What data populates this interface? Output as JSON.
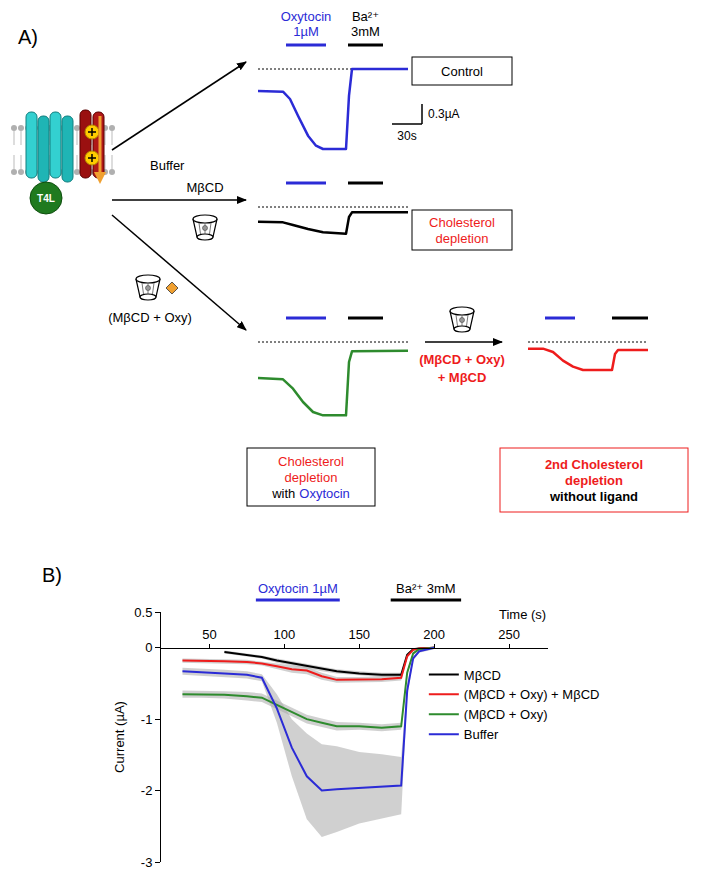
{
  "panel_a": {
    "label": "A)",
    "baseline": 0,
    "receptor_label": "T4L",
    "treatments": [
      "Buffer",
      "MβCD",
      "(MβCD + Oxy)"
    ],
    "stimuli": [
      {
        "lines": [
          "Oxytocin",
          "1µM"
        ],
        "color": "#2b2bd6"
      },
      {
        "lines": [
          "Ba²⁺",
          "3mM"
        ],
        "color": "#000000"
      }
    ],
    "scale_bar": {
      "current": 0.3,
      "current_label": "0.3µA",
      "time": 30,
      "time_label": "30s"
    },
    "second_treatment": {
      "lines": [
        "(MβCD + Oxy)",
        "+ MβCD"
      ],
      "color": "#ee1c1c"
    },
    "traces": [
      {
        "color": "#2b2bd6",
        "t": [
          0,
          25,
          32,
          40,
          50,
          58,
          65,
          88,
          91,
          94,
          150
        ],
        "current": [
          -0.33,
          -0.34,
          -0.45,
          -0.7,
          -1.0,
          -1.15,
          -1.2,
          -1.2,
          -0.4,
          0,
          0
        ],
        "stimulus_times": [
          [
            28,
            68
          ],
          [
            90,
            125
          ]
        ],
        "box": {
          "color": "#000000",
          "lines": [
            [
              {
                "text": "Control",
                "color": "#000000"
              }
            ]
          ]
        }
      },
      {
        "color": "#000000",
        "t": [
          0,
          25,
          35,
          50,
          65,
          88,
          91,
          94,
          150
        ],
        "current": [
          -0.22,
          -0.23,
          -0.27,
          -0.33,
          -0.38,
          -0.4,
          -0.15,
          -0.08,
          -0.08
        ],
        "stimulus_times": [
          [
            28,
            68
          ],
          [
            90,
            125
          ]
        ],
        "box": {
          "color": "#000000",
          "lines": [
            [
              {
                "text": "Cholesterol",
                "color": "#ee1c1c"
              }
            ],
            [
              {
                "text": "depletion",
                "color": "#ee1c1c"
              }
            ]
          ]
        }
      },
      {
        "color": "#2e8b2e",
        "t": [
          0,
          25,
          35,
          45,
          55,
          65,
          88,
          91,
          94,
          150
        ],
        "current": [
          -0.54,
          -0.56,
          -0.7,
          -0.9,
          -1.05,
          -1.1,
          -1.1,
          -0.3,
          -0.14,
          -0.13
        ],
        "stimulus_times": [
          [
            28,
            68
          ],
          [
            90,
            125
          ]
        ],
        "box": {
          "color": "#000000",
          "lines": [
            [
              {
                "text": "Cholesterol",
                "color": "#ee1c1c"
              }
            ],
            [
              {
                "text": "depletion",
                "color": "#ee1c1c"
              }
            ],
            [
              {
                "text": "with",
                "color": "#000000"
              },
              {
                "text": "Oxytocin",
                "color": "#2b2bd6"
              }
            ]
          ]
        }
      },
      {
        "color": "#ee1c1c",
        "t": [
          0,
          15,
          25,
          35,
          45,
          55,
          84,
          87,
          90,
          120
        ],
        "current": [
          -0.1,
          -0.1,
          -0.15,
          -0.28,
          -0.37,
          -0.42,
          -0.42,
          -0.18,
          -0.12,
          -0.12
        ],
        "stimulus_times": [
          [
            17,
            47
          ],
          [
            84,
            120
          ]
        ],
        "box": {
          "color": "#ee1c1c",
          "lines": [
            [
              {
                "text": "2nd Cholesterol",
                "color": "#ee1c1c"
              }
            ],
            [
              {
                "text": "depletion",
                "color": "#ee1c1c"
              }
            ],
            [
              {
                "text": "without ligand",
                "color": "#000000"
              }
            ]
          ]
        }
      }
    ]
  },
  "chart_data": {
    "type": "line",
    "annotations": [
      {
        "text": "B)"
      },
      {
        "text": "Oxytocin 1µM",
        "x": [
          81,
          137
        ],
        "color": "#2b2bd6"
      },
      {
        "text": "Ba²⁺ 3mM",
        "x": [
          171,
          218
        ],
        "color": "#000000"
      }
    ],
    "xlabel": "Time (s)",
    "ylabel": "Current (µA)",
    "xlim": [
      17,
      276
    ],
    "xticks": [
      50,
      100,
      150,
      200,
      250
    ],
    "ylim": [
      -3,
      0.5
    ],
    "yticks": [
      -3,
      -2,
      -1,
      0,
      0.5
    ],
    "grid": false,
    "legend": "right",
    "x": [
      32,
      45,
      60,
      75,
      85,
      95,
      105,
      115,
      125,
      135,
      150,
      165,
      178,
      182,
      186,
      190,
      200
    ],
    "series": [
      {
        "name": "MβCD",
        "color": "#000000",
        "values": [
          null,
          null,
          -0.06,
          -0.1,
          -0.13,
          -0.18,
          -0.22,
          -0.26,
          -0.3,
          -0.33,
          -0.36,
          -0.38,
          -0.38,
          -0.1,
          -0.02,
          -0.01,
          0
        ],
        "error": [
          null,
          null,
          0.02,
          0.02,
          0.02,
          0.03,
          0.03,
          0.03,
          0.03,
          0.03,
          0.03,
          0.03,
          0.03,
          0.02,
          0.01,
          0.01,
          0.01
        ]
      },
      {
        "name": "(MβCD + Oxy) + MβCD",
        "color": "#ee1c1c",
        "values": [
          -0.18,
          -0.18,
          -0.19,
          -0.2,
          -0.22,
          -0.26,
          -0.3,
          -0.32,
          -0.4,
          -0.45,
          -0.45,
          -0.44,
          -0.42,
          -0.12,
          -0.03,
          -0.01,
          0
        ],
        "error": [
          0.03,
          0.03,
          0.03,
          0.03,
          0.03,
          0.04,
          0.05,
          0.05,
          0.05,
          0.04,
          0.04,
          0.04,
          0.04,
          0.02,
          0.01,
          0.01,
          0.01
        ]
      },
      {
        "name": "(MβCD + Oxy)",
        "color": "#2e8b2e",
        "values": [
          -0.65,
          -0.65,
          -0.66,
          -0.68,
          -0.7,
          -0.8,
          -0.9,
          -1.0,
          -1.05,
          -1.1,
          -1.1,
          -1.12,
          -1.1,
          -0.35,
          -0.08,
          -0.02,
          0
        ],
        "error": [
          0.05,
          0.05,
          0.05,
          0.06,
          0.06,
          0.06,
          0.06,
          0.06,
          0.06,
          0.06,
          0.05,
          0.05,
          0.05,
          0.03,
          0.02,
          0.01,
          0.01
        ]
      },
      {
        "name": "Buffer",
        "color": "#2b2bd6",
        "values": [
          -0.33,
          -0.34,
          -0.36,
          -0.38,
          -0.42,
          -0.85,
          -1.4,
          -1.8,
          -2.0,
          -1.98,
          -1.96,
          -1.94,
          -1.93,
          -0.6,
          -0.15,
          -0.05,
          0
        ],
        "error": [
          0.05,
          0.05,
          0.05,
          0.05,
          0.05,
          0.2,
          0.4,
          0.6,
          0.65,
          0.6,
          0.5,
          0.45,
          0.4,
          0.1,
          0.03,
          0.02,
          0.02
        ]
      }
    ]
  }
}
